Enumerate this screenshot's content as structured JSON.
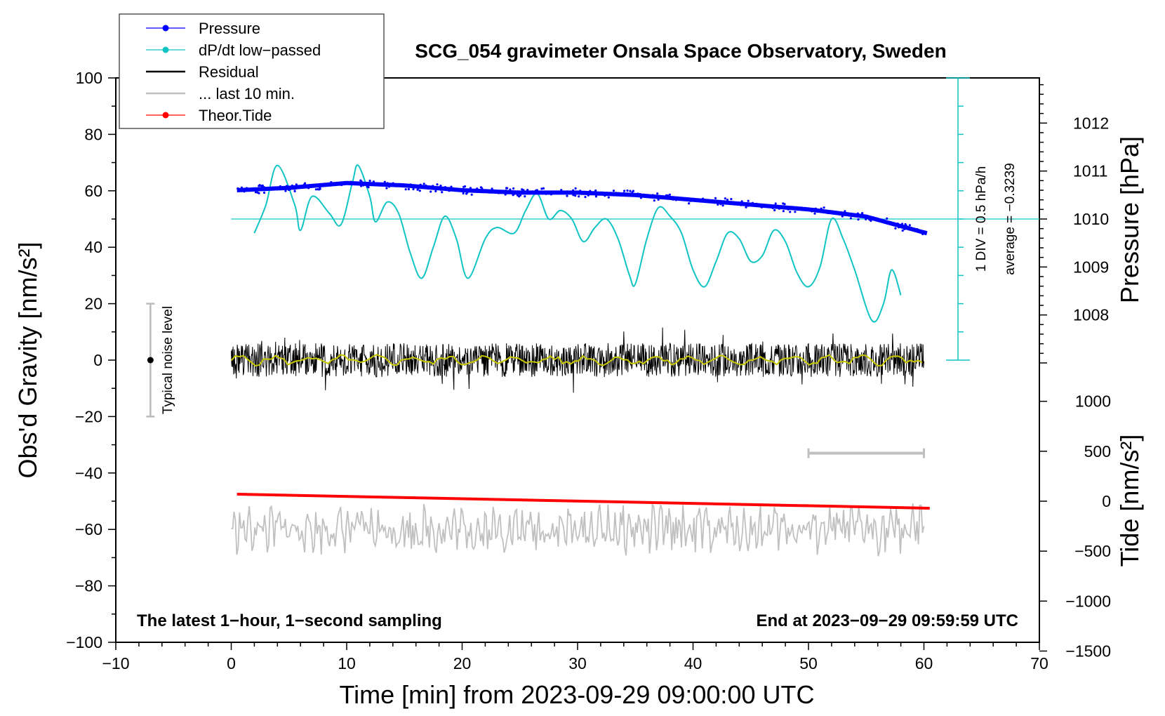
{
  "chart_data": {
    "type": "line",
    "title": "SCG_054 gravimeter Onsala Space Observatory, Sweden",
    "xlabel": "Time [min] from 2023-09-29 09:00:00 UTC",
    "ylabel": "Obs'd Gravity [nm/s²]",
    "ylabel_right_pressure": "Pressure [hPa]",
    "ylabel_right_tide": "Tide [nm/s²]",
    "xlim": [
      -10,
      70
    ],
    "ylim": [
      -100,
      100
    ],
    "x_ticks": [
      "−10",
      "0",
      "10",
      "20",
      "30",
      "40",
      "50",
      "60",
      "70"
    ],
    "y_ticks": [
      "100",
      "80",
      "60",
      "40",
      "20",
      "0",
      "−20",
      "−40",
      "−60",
      "−80",
      "−100"
    ],
    "pressure_axis": {
      "range": [
        1007,
        1013
      ],
      "ticks": [
        "1012",
        "1011",
        "1010",
        "1009",
        "1008"
      ]
    },
    "tide_axis": {
      "range": [
        -1500,
        1000
      ],
      "ticks": [
        "1000",
        "500",
        "0",
        "−500",
        "−1000",
        "−1500"
      ]
    },
    "legend": [
      {
        "label": "Pressure",
        "color": "#0000ff",
        "style": "line-dot"
      },
      {
        "label": "dP/dt low−passed",
        "color": "#10c4c4",
        "style": "line-dot"
      },
      {
        "label": "Residual",
        "color": "#000000",
        "style": "line"
      },
      {
        "label": "... last 10 min.",
        "color": "#c0c0c0",
        "style": "line"
      },
      {
        "label": "Theor.Tide",
        "color": "#ff0000",
        "style": "line-dot"
      }
    ],
    "series": [
      {
        "name": "Pressure",
        "unit": "hPa",
        "x": [
          0.5,
          5,
          10,
          15,
          20,
          25,
          30,
          35,
          40,
          45,
          50,
          55,
          60.3
        ],
        "values": [
          1010.6,
          1010.65,
          1010.75,
          1010.7,
          1010.6,
          1010.55,
          1010.55,
          1010.5,
          1010.4,
          1010.3,
          1010.2,
          1010.05,
          1009.7
        ]
      },
      {
        "name": "dP/dt low−passed",
        "unit": "plot units (1 DIV = 0.5 hPa/h)",
        "x": [
          2,
          3,
          4,
          5.5,
          6,
          7,
          8.5,
          9.5,
          10.5,
          11,
          12,
          12.5,
          13.5,
          14.5,
          15.5,
          16.5,
          17.5,
          18.5,
          19.5,
          20.5,
          22,
          23,
          24.5,
          25.5,
          26.5,
          27.5,
          28.5,
          29.5,
          30.5,
          31.5,
          32.5,
          33.5,
          34.5,
          35,
          36,
          37,
          38,
          39,
          40,
          41,
          42,
          43,
          44,
          45,
          46,
          47,
          48,
          49,
          50,
          51,
          52,
          53,
          54,
          55.5,
          56.5,
          57.2,
          58
        ],
        "values": [
          45,
          55,
          69,
          55,
          46,
          58,
          52,
          48,
          63,
          69,
          58,
          49,
          56,
          52,
          38,
          29,
          40,
          51,
          43,
          29,
          43,
          47,
          45,
          53,
          59,
          50,
          53,
          50,
          42,
          47,
          50,
          43,
          30,
          27,
          43,
          54,
          51,
          45,
          32,
          26,
          35,
          45,
          43,
          35,
          37,
          46,
          42,
          31,
          26,
          33,
          50,
          43,
          32,
          14,
          20,
          32,
          23
        ]
      },
      {
        "name": "Residual",
        "unit": "nm/s²",
        "x": [
          0,
          60
        ],
        "values": [
          0,
          0
        ],
        "amplitude": 12
      },
      {
        "name": "... last 10 min.",
        "unit": "nm/s²",
        "x": [
          0,
          60
        ],
        "values": [
          -60,
          -60
        ],
        "amplitude": 8
      },
      {
        "name": "Theor.Tide",
        "unit": "nm/s²",
        "x": [
          0.5,
          60.5
        ],
        "values": [
          70,
          -70
        ]
      }
    ],
    "pressure_reference_line": {
      "value": 50
    },
    "dpdt_scale": {
      "label": "1 DIV = 0.5 hPa/h",
      "average": "average = −0.3239",
      "range": [
        0,
        100
      ]
    },
    "noise_bar": {
      "x": -7,
      "center": 0,
      "range": [
        -20,
        20
      ],
      "label": "Typical noise level"
    },
    "last_window_bar": {
      "x_start": 50,
      "x_end": 60,
      "value": -33
    },
    "annotation_left": "The latest 1−hour, 1−second sampling",
    "annotation_right": "End at 2023−09−29 09:59:59 UTC"
  }
}
